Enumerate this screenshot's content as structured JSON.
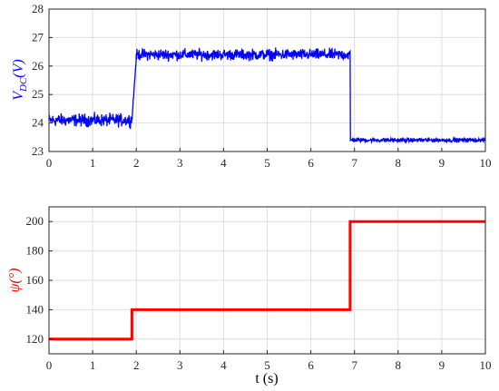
{
  "chart_data": [
    {
      "type": "line",
      "ylabel_main": "V",
      "ylabel_sub": "DC",
      "ylabel_tail": "(V)",
      "color": "#0000ff",
      "xlim": [
        0,
        10
      ],
      "ylim": [
        23,
        28
      ],
      "xticks": [
        "0",
        "1",
        "2",
        "3",
        "4",
        "5",
        "6",
        "7",
        "8",
        "9",
        "10"
      ],
      "yticks": [
        "23",
        "24",
        "25",
        "26",
        "27",
        "28"
      ],
      "grid": true,
      "series": [
        {
          "segments": [
            {
              "x_start": 0.0,
              "x_end": 1.9,
              "y_mean": 24.1,
              "noise": 0.18
            },
            {
              "x_start": 1.9,
              "x_end": 2.0,
              "y_mean_start": 24.1,
              "y_mean_end": 26.3,
              "noise": 0.1
            },
            {
              "x_start": 2.0,
              "x_end": 6.9,
              "y_mean": 26.4,
              "noise": 0.16
            },
            {
              "x_start": 6.9,
              "x_end": 10.0,
              "y_mean": 23.4,
              "noise": 0.06
            }
          ]
        }
      ]
    },
    {
      "type": "line",
      "xlabel": "t (s)",
      "ylabel": "ψ(°)",
      "color": "#ff0000",
      "xlim": [
        0,
        10
      ],
      "ylim": [
        110,
        210
      ],
      "xticks": [
        "0",
        "1",
        "2",
        "3",
        "4",
        "5",
        "6",
        "7",
        "8",
        "9",
        "10"
      ],
      "yticks": [
        "120",
        "140",
        "160",
        "180",
        "200"
      ],
      "grid": true,
      "series": [
        {
          "x": [
            0,
            1.9,
            1.9,
            6.9,
            6.9,
            10
          ],
          "y": [
            120,
            120,
            140,
            140,
            200,
            200
          ]
        }
      ]
    }
  ]
}
